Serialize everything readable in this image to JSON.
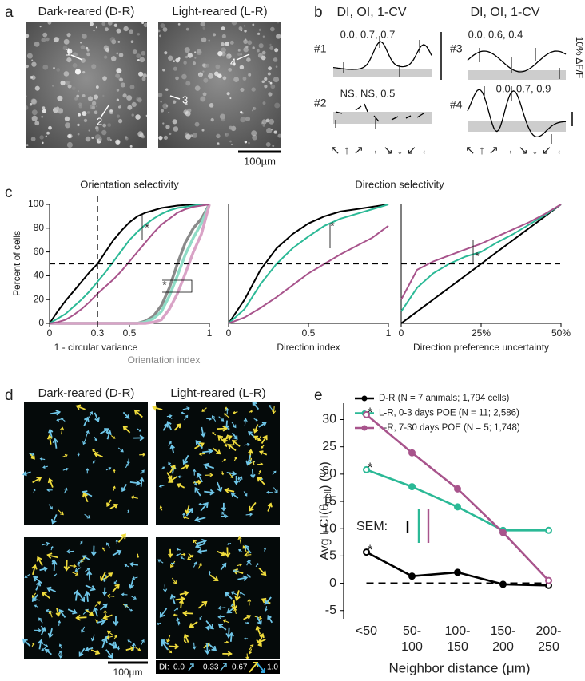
{
  "figure": {
    "panel_a": {
      "letter": "a",
      "titles": [
        "Dark-reared (D-R)",
        "Light-reared (L-R)"
      ],
      "cell_labels": [
        "1",
        "2",
        "3",
        "4"
      ],
      "scale_bar": "100µm"
    },
    "panel_b": {
      "letter": "b",
      "headers": [
        "DI, OI, 1-CV",
        "DI, OI, 1-CV"
      ],
      "cells": [
        {
          "id": "#1",
          "indices": "0.0, 0.7, 0.7"
        },
        {
          "id": "#2",
          "indices": "NS, NS, 0.5"
        },
        {
          "id": "#3",
          "indices": "0.0, 0.6, 0.4"
        },
        {
          "id": "#4",
          "indices": "0.0, 0.7, 0.9"
        }
      ],
      "scale_label": "10% ΔF/F",
      "directions": "↖↑↗→↘↓↙←"
    },
    "panel_c": {
      "letter": "c",
      "titles": [
        "Orientation selectivity",
        "Direction selectivity"
      ],
      "ylabel": "Percent of cells",
      "extra_xlabel": "Orientation index"
    },
    "panel_d": {
      "letter": "d",
      "titles": [
        "Dark-reared (D-R)",
        "Light-reared (L-R)"
      ],
      "scale_bar": "100µm",
      "di_legend": {
        "prefix": "DI:",
        "levels": [
          "0.0",
          "0.33",
          "0.67",
          "1.0"
        ]
      }
    },
    "panel_e": {
      "letter": "e"
    }
  },
  "chart_data": [
    {
      "type": "line",
      "xlabel": "1 - circular variance",
      "x": [
        0,
        0.05,
        0.1,
        0.15,
        0.2,
        0.25,
        0.3,
        0.35,
        0.4,
        0.45,
        0.5,
        0.55,
        0.6,
        0.65,
        0.7,
        0.75,
        0.8,
        0.85,
        0.9,
        0.95,
        1
      ],
      "series": [
        {
          "color": "#8a8a8a",
          "line_width": 3.5,
          "values": [
            0,
            0,
            0,
            0,
            0,
            0,
            0,
            0,
            0,
            0,
            0,
            0,
            2,
            6,
            15,
            30,
            50,
            68,
            80,
            88,
            100
          ]
        },
        {
          "color": "#8fdcc6",
          "line_width": 3.5,
          "values": [
            0,
            0,
            0,
            0,
            0,
            0,
            0,
            0,
            0,
            0,
            0,
            0,
            1,
            4,
            10,
            23,
            40,
            58,
            72,
            84,
            100
          ]
        },
        {
          "color": "#d9a3c6",
          "line_width": 3.5,
          "values": [
            0,
            0,
            0,
            0,
            0,
            0,
            0,
            0,
            0,
            0,
            0,
            0,
            0,
            1,
            3,
            12,
            25,
            42,
            60,
            75,
            100
          ]
        },
        {
          "color": "#000000",
          "line_width": 2,
          "values": [
            0,
            10,
            19,
            27,
            35,
            43,
            50,
            60,
            70,
            78,
            85,
            90,
            93,
            95,
            97,
            98,
            99,
            99.5,
            100,
            100,
            100
          ]
        },
        {
          "color": "#2bb996",
          "line_width": 2,
          "values": [
            0,
            4,
            8,
            14,
            20,
            27,
            35,
            43,
            52,
            61,
            70,
            77,
            83,
            88,
            92,
            95,
            97,
            98,
            99,
            100,
            100
          ]
        },
        {
          "color": "#a8548c",
          "line_width": 2,
          "values": [
            0,
            1,
            3,
            7,
            12,
            18,
            25,
            31,
            37,
            44,
            52,
            60,
            68,
            76,
            83,
            88,
            93,
            96,
            98,
            99,
            100
          ]
        }
      ],
      "xlim": [
        0,
        1
      ],
      "ylim": [
        0,
        100
      ],
      "xticks": [
        0,
        0.3,
        0.5,
        1
      ],
      "yticks": [
        0,
        20,
        40,
        60,
        80,
        100
      ],
      "hline": 50,
      "vline": 0.3,
      "annotations": [
        "*",
        "*"
      ]
    },
    {
      "type": "line",
      "xlabel": "Direction index",
      "x": [
        0,
        0.1,
        0.2,
        0.3,
        0.4,
        0.5,
        0.6,
        0.7,
        0.8,
        0.9,
        1
      ],
      "series": [
        {
          "color": "#000000",
          "line_width": 2,
          "values": [
            0,
            20,
            45,
            63,
            75,
            84,
            90,
            94,
            96,
            98,
            100
          ]
        },
        {
          "color": "#2bb996",
          "line_width": 2,
          "values": [
            0,
            12,
            33,
            50,
            63,
            73,
            82,
            88,
            92,
            96,
            100
          ]
        },
        {
          "color": "#a8548c",
          "line_width": 2,
          "values": [
            0,
            5,
            13,
            22,
            32,
            42,
            50,
            58,
            65,
            72,
            82
          ]
        }
      ],
      "xlim": [
        0,
        1
      ],
      "ylim": [
        0,
        100
      ],
      "xticks": [
        0,
        0.5,
        1
      ],
      "hline": 50,
      "annotations": [
        "*"
      ]
    },
    {
      "type": "line",
      "xlabel": "Direction preference uncertainty",
      "x": [
        0,
        5,
        10,
        15,
        20,
        25,
        30,
        35,
        40,
        45,
        50
      ],
      "series": [
        {
          "color": "#000000",
          "line_width": 2,
          "values": [
            0,
            10,
            20,
            30,
            40,
            50,
            60,
            70,
            80,
            90,
            100
          ]
        },
        {
          "color": "#2bb996",
          "line_width": 2,
          "values": [
            10,
            30,
            42,
            50,
            56,
            60,
            68,
            75,
            83,
            91,
            100
          ]
        },
        {
          "color": "#a8548c",
          "line_width": 2,
          "values": [
            20,
            45,
            52,
            57,
            62,
            67,
            73,
            79,
            85,
            92,
            100
          ]
        }
      ],
      "xlim": [
        0,
        50
      ],
      "ylim": [
        0,
        100
      ],
      "xticks": [
        0,
        {
          "value": 25,
          "label": "25%"
        },
        {
          "value": 50,
          "label": "50%"
        }
      ],
      "hline": 50,
      "annotations": [
        "*"
      ]
    },
    {
      "type": "line",
      "categories": [
        "<50",
        "50-\n100",
        "100-\n150",
        "150-\n200",
        "200-\n250"
      ],
      "series": [
        {
          "name": "D-R (N = 7 animals; 1,794 cells)",
          "color": "#000000",
          "values": [
            5.7,
            1.3,
            2.0,
            -0.2,
            -0.4
          ]
        },
        {
          "name": "L-R, 0-3 days POE (N = 11; 2,586)",
          "color": "#2bb996",
          "values": [
            20.8,
            17.7,
            14.0,
            9.7,
            9.7
          ]
        },
        {
          "name": "L-R, 7-30 days POE (N = 5; 1,748)",
          "color": "#a8548c",
          "values": [
            30.9,
            23.9,
            17.3,
            9.3,
            0.5
          ]
        }
      ],
      "ylim": [
        -6.5,
        33
      ],
      "yticks": [
        -5,
        0,
        5,
        10,
        15,
        20,
        25,
        30
      ],
      "ylabel": [
        "Avg  LCI(θ",
        "cell",
        ") (%)"
      ],
      "xlabel": "Neighbor distance (μm)",
      "hline": 0,
      "annotations": [
        "*",
        "*",
        "*"
      ],
      "sem_label": "SEM:"
    }
  ]
}
